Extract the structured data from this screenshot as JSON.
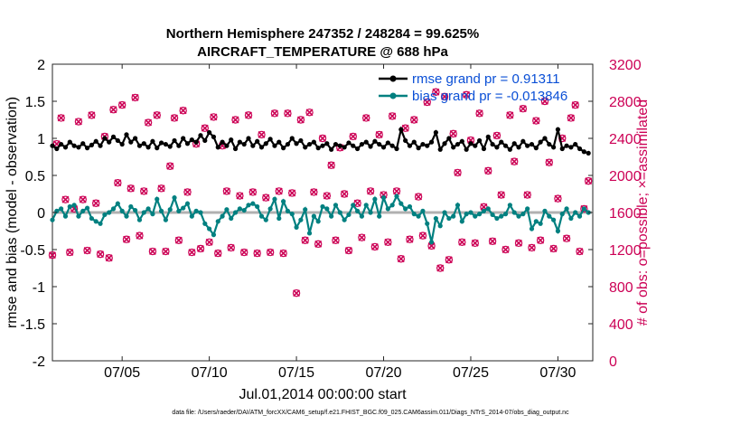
{
  "chart_data": {
    "type": "line",
    "title_line1": "Northern Hemisphere 247352 / 248284 = 99.625%",
    "title_line2": "AIRCRAFT_TEMPERATURE @ 688 hPa",
    "xlabel": "Jul.01,2014 00:00:00 start",
    "ylabel": "rmse and bias (model - observation)",
    "y2label": "# of obs: o=possible; ×=assimilated",
    "xlim": [
      1,
      32
    ],
    "ylim": [
      -2,
      2
    ],
    "y2lim": [
      0,
      3200
    ],
    "x_ticks": [
      5,
      10,
      15,
      20,
      25,
      30
    ],
    "x_tick_labels": [
      "07/05",
      "07/10",
      "07/15",
      "07/20",
      "07/25",
      "07/30"
    ],
    "y_ticks": [
      -2,
      -1.5,
      -1,
      -0.5,
      0,
      0.5,
      1,
      1.5,
      2
    ],
    "y_tick_labels": [
      "-2",
      "-1.5",
      "-1",
      "-0.5",
      "0",
      "0.5",
      "1",
      "1.5",
      "2"
    ],
    "y2_ticks": [
      0,
      400,
      800,
      1200,
      1600,
      2000,
      2400,
      2800,
      3200
    ],
    "y2_tick_labels": [
      "0",
      "400",
      "800",
      "1200",
      "1600",
      "2000",
      "2400",
      "2800",
      "3200"
    ],
    "legend": [
      {
        "name": "rmse grand pr = 0.91311",
        "color": "#000000"
      },
      {
        "name": "bias grand pr = -0.013846",
        "color": "#008080"
      }
    ],
    "footnote": "data file: /Users/raeder/DAI/ATM_forcXX/CAM6_setup/f.e21.FHIST_BGC.f09_025.CAM6assim.011/Diags_NTrS_2014-07/obs_diag_output.nc",
    "colors": {
      "rmse": "#000000",
      "bias": "#008080",
      "obs": "#cc0055",
      "zero": "#b0b0b0"
    },
    "series": [
      {
        "name": "rmse",
        "x": [
          1.0,
          1.25,
          1.5,
          1.75,
          2.0,
          2.25,
          2.5,
          2.75,
          3.0,
          3.25,
          3.5,
          3.75,
          4.0,
          4.25,
          4.5,
          4.75,
          5.0,
          5.25,
          5.5,
          5.75,
          6.0,
          6.25,
          6.5,
          6.75,
          7.0,
          7.25,
          7.5,
          7.75,
          8.0,
          8.25,
          8.5,
          8.75,
          9.0,
          9.25,
          9.5,
          9.75,
          10.0,
          10.25,
          10.5,
          10.75,
          11.0,
          11.25,
          11.5,
          11.75,
          12.0,
          12.25,
          12.5,
          12.75,
          13.0,
          13.25,
          13.5,
          13.75,
          14.0,
          14.25,
          14.5,
          14.75,
          15.0,
          15.25,
          15.5,
          15.75,
          16.0,
          16.25,
          16.5,
          16.75,
          17.0,
          17.25,
          17.5,
          17.75,
          18.0,
          18.25,
          18.5,
          18.75,
          19.0,
          19.25,
          19.5,
          19.75,
          20.0,
          20.25,
          20.5,
          20.75,
          21.0,
          21.25,
          21.5,
          21.75,
          22.0,
          22.25,
          22.5,
          22.75,
          23.0,
          23.25,
          23.5,
          23.75,
          24.0,
          24.25,
          24.5,
          24.75,
          25.0,
          25.25,
          25.5,
          25.75,
          26.0,
          26.25,
          26.5,
          26.75,
          27.0,
          27.25,
          27.5,
          27.75,
          28.0,
          28.25,
          28.5,
          28.75,
          29.0,
          29.25,
          29.5,
          29.75,
          30.0,
          30.25,
          30.5,
          30.75,
          31.0,
          31.25,
          31.5,
          31.75
        ],
        "values": [
          0.9,
          0.86,
          0.92,
          0.88,
          0.95,
          0.9,
          0.88,
          0.93,
          0.87,
          0.91,
          0.96,
          0.9,
          1.0,
          0.95,
          1.02,
          0.97,
          0.92,
          1.05,
          0.95,
          1.0,
          0.9,
          0.93,
          0.88,
          0.96,
          0.87,
          0.94,
          0.92,
          0.89,
          0.97,
          0.9,
          1.0,
          0.93,
          0.98,
          0.95,
          1.04,
          0.97,
          1.08,
          1.02,
          0.88,
          0.95,
          0.9,
          0.98,
          0.86,
          0.95,
          0.92,
          1.0,
          0.9,
          0.96,
          0.88,
          0.93,
          0.99,
          0.9,
          0.95,
          0.87,
          0.92,
          1.0,
          0.93,
          0.97,
          0.88,
          0.92,
          0.95,
          0.87,
          0.9,
          0.93,
          0.85,
          0.92,
          0.9,
          0.88,
          0.94,
          0.9,
          0.86,
          0.92,
          0.95,
          0.89,
          0.96,
          0.92,
          0.88,
          0.94,
          0.9,
          0.86,
          1.12,
          0.97,
          0.9,
          0.95,
          0.87,
          0.92,
          0.9,
          0.95,
          1.08,
          0.85,
          0.93,
          1.0,
          0.88,
          0.92,
          0.96,
          0.85,
          0.93,
          0.9,
          0.97,
          0.86,
          1.02,
          0.92,
          0.88,
          0.95,
          0.9,
          0.85,
          0.93,
          0.88,
          0.96,
          0.9,
          0.92,
          0.87,
          0.95,
          1.0,
          0.92,
          0.88,
          1.12,
          0.86,
          0.9,
          0.88,
          0.92,
          0.86,
          0.82,
          0.8
        ]
      },
      {
        "name": "bias",
        "x": [
          1.0,
          1.25,
          1.5,
          1.75,
          2.0,
          2.25,
          2.5,
          2.75,
          3.0,
          3.25,
          3.5,
          3.75,
          4.0,
          4.25,
          4.5,
          4.75,
          5.0,
          5.25,
          5.5,
          5.75,
          6.0,
          6.25,
          6.5,
          6.75,
          7.0,
          7.25,
          7.5,
          7.75,
          8.0,
          8.25,
          8.5,
          8.75,
          9.0,
          9.25,
          9.5,
          9.75,
          10.0,
          10.25,
          10.5,
          10.75,
          11.0,
          11.25,
          11.5,
          11.75,
          12.0,
          12.25,
          12.5,
          12.75,
          13.0,
          13.25,
          13.5,
          13.75,
          14.0,
          14.25,
          14.5,
          14.75,
          15.0,
          15.25,
          15.5,
          15.75,
          16.0,
          16.25,
          16.5,
          16.75,
          17.0,
          17.25,
          17.5,
          17.75,
          18.0,
          18.25,
          18.5,
          18.75,
          19.0,
          19.25,
          19.5,
          19.75,
          20.0,
          20.25,
          20.5,
          20.75,
          21.0,
          21.25,
          21.5,
          21.75,
          22.0,
          22.25,
          22.5,
          22.75,
          23.0,
          23.25,
          23.5,
          23.75,
          24.0,
          24.25,
          24.5,
          24.75,
          25.0,
          25.25,
          25.5,
          25.75,
          26.0,
          26.25,
          26.5,
          26.75,
          27.0,
          27.25,
          27.5,
          27.75,
          28.0,
          28.25,
          28.5,
          28.75,
          29.0,
          29.25,
          29.5,
          29.75,
          30.0,
          30.25,
          30.5,
          30.75,
          31.0,
          31.25,
          31.5,
          31.75
        ],
        "values": [
          -0.1,
          0.02,
          0.05,
          -0.05,
          0.08,
          0.1,
          -0.05,
          0.02,
          0.06,
          -0.08,
          -0.12,
          -0.15,
          -0.03,
          0.0,
          0.05,
          0.12,
          0.02,
          -0.05,
          0.08,
          0.03,
          -0.1,
          0.0,
          0.05,
          -0.02,
          0.18,
          0.02,
          -0.1,
          0.04,
          0.2,
          0.02,
          0.06,
          0.12,
          -0.05,
          0.02,
          0.0,
          -0.15,
          -0.22,
          -0.3,
          -0.12,
          -0.05,
          0.04,
          -0.08,
          0.0,
          0.05,
          0.03,
          0.1,
          0.12,
          0.08,
          -0.05,
          -0.1,
          0.05,
          0.18,
          -0.08,
          0.15,
          0.02,
          -0.02,
          -0.2,
          -0.1,
          0.04,
          -0.28,
          -0.05,
          -0.12,
          0.08,
          0.05,
          -0.05,
          0.1,
          0.0,
          -0.1,
          -0.03,
          0.1,
          0.02,
          -0.05,
          0.1,
          0.0,
          0.18,
          -0.05,
          0.2,
          0.05,
          0.1,
          0.22,
          0.12,
          0.05,
          0.08,
          -0.02,
          -0.05,
          0.02,
          -0.15,
          -0.4,
          -0.08,
          -0.18,
          0.0,
          -0.08,
          -0.05,
          0.1,
          -0.12,
          -0.02,
          0.0,
          -0.05,
          -0.02,
          0.02,
          0.05,
          -0.03,
          -0.08,
          -0.05,
          -0.02,
          0.1,
          0.0,
          -0.05,
          -0.02,
          0.05,
          -0.22,
          -0.12,
          -0.15,
          0.02,
          -0.05,
          -0.1,
          -0.25,
          -0.02,
          0.05,
          -0.08,
          0.0,
          -0.05,
          0.05,
          0.0
        ]
      },
      {
        "name": "obs_count",
        "axis": "right",
        "x": [
          1.0,
          1.25,
          1.5,
          1.75,
          2.0,
          2.25,
          2.5,
          2.75,
          3.0,
          3.25,
          3.5,
          3.75,
          4.0,
          4.25,
          4.5,
          4.75,
          5.0,
          5.25,
          5.5,
          5.75,
          6.0,
          6.25,
          6.5,
          6.75,
          7.0,
          7.25,
          7.5,
          7.75,
          8.0,
          8.25,
          8.5,
          8.75,
          9.0,
          9.25,
          9.5,
          9.75,
          10.0,
          10.25,
          10.5,
          10.75,
          11.0,
          11.25,
          11.5,
          11.75,
          12.0,
          12.25,
          12.5,
          12.75,
          13.0,
          13.25,
          13.5,
          13.75,
          14.0,
          14.25,
          14.5,
          14.75,
          15.0,
          15.25,
          15.5,
          15.75,
          16.0,
          16.25,
          16.5,
          16.75,
          17.0,
          17.25,
          17.5,
          17.75,
          18.0,
          18.25,
          18.5,
          18.75,
          19.0,
          19.25,
          19.5,
          19.75,
          20.0,
          20.25,
          20.5,
          20.75,
          21.0,
          21.25,
          21.5,
          21.75,
          22.0,
          22.25,
          22.5,
          22.75,
          23.0,
          23.25,
          23.5,
          23.75,
          24.0,
          24.25,
          24.5,
          24.75,
          25.0,
          25.25,
          25.5,
          25.75,
          26.0,
          26.25,
          26.5,
          26.75,
          27.0,
          27.25,
          27.5,
          27.75,
          28.0,
          28.25,
          28.5,
          28.75,
          29.0,
          29.25,
          29.5,
          29.75,
          30.0,
          30.25,
          30.5,
          30.75,
          31.0,
          31.25,
          31.5,
          31.75
        ],
        "values": [
          1140,
          2340,
          2620,
          1740,
          1170,
          1640,
          2580,
          1740,
          1190,
          2650,
          1700,
          1150,
          2420,
          1110,
          2710,
          1920,
          2760,
          1310,
          1860,
          2840,
          1350,
          1830,
          2570,
          1180,
          2650,
          1860,
          1180,
          2100,
          2620,
          1300,
          2700,
          1820,
          1170,
          2340,
          1210,
          2510,
          1280,
          2630,
          1160,
          2320,
          1830,
          1220,
          2600,
          1780,
          1170,
          2650,
          1820,
          1160,
          2440,
          1760,
          1170,
          2670,
          1830,
          1160,
          2670,
          1810,
          730,
          2600,
          1300,
          2680,
          1820,
          1260,
          2400,
          1780,
          2110,
          1300,
          2300,
          1800,
          1190,
          2420,
          1700,
          1330,
          2620,
          1830,
          1230,
          2440,
          1790,
          1280,
          2640,
          1830,
          1100,
          2510,
          1310,
          2600,
          1770,
          1350,
          2790,
          1240,
          2900,
          1000,
          2850,
          1090,
          2450,
          2030,
          1280,
          2870,
          2380,
          1270,
          2670,
          1660,
          2050,
          1290,
          2430,
          1790,
          1200,
          2650,
          2150,
          1270,
          2720,
          1790,
          1220,
          2590,
          1300,
          2800,
          2140,
          1210,
          1750,
          2400,
          1320,
          2620,
          2760,
          1180,
          1640,
          1940
        ]
      }
    ]
  }
}
